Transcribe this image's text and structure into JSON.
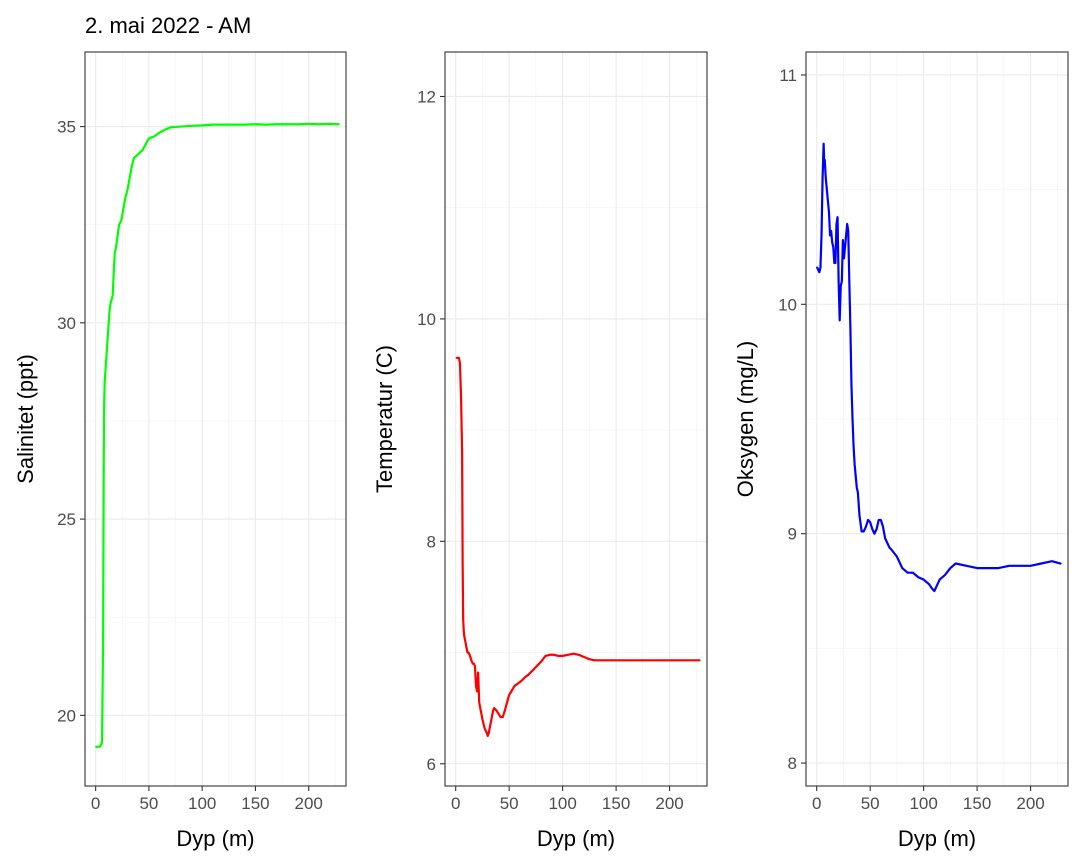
{
  "title": "2. mai 2022 - AM",
  "colors": {
    "salinity": "#00ff00",
    "temperature": "#ff0000",
    "oxygen": "#0000ff"
  },
  "chart_data": [
    {
      "type": "line",
      "id": "salinity",
      "xlabel": "Dyp (m)",
      "ylabel": "Salinitet (ppt)",
      "xlim": [
        -10,
        235
      ],
      "ylim": [
        18.2,
        36.9
      ],
      "x_ticks": [
        0,
        50,
        100,
        150,
        200
      ],
      "y_ticks": [
        20,
        25,
        30,
        35
      ],
      "grid": true,
      "series": [
        {
          "color": "#00ff00",
          "x": [
            0.5,
            2,
            4,
            6,
            7,
            7.5,
            8,
            8.5,
            9,
            10,
            11,
            12,
            13,
            14,
            15,
            16,
            17,
            18,
            19,
            20,
            21,
            22,
            24,
            26,
            28,
            30,
            32,
            34,
            36,
            38,
            40,
            42,
            44,
            46,
            48,
            50,
            55,
            60,
            65,
            70,
            80,
            90,
            100,
            110,
            120,
            130,
            140,
            150,
            160,
            170,
            180,
            190,
            200,
            210,
            220,
            228
          ],
          "y": [
            19.2,
            19.2,
            19.2,
            19.3,
            22.0,
            26.0,
            28.0,
            28.5,
            28.7,
            29.1,
            29.5,
            29.9,
            30.3,
            30.5,
            30.6,
            30.7,
            31.3,
            31.8,
            31.9,
            32.1,
            32.3,
            32.5,
            32.6,
            32.9,
            33.2,
            33.4,
            33.7,
            34.0,
            34.2,
            34.25,
            34.3,
            34.35,
            34.4,
            34.5,
            34.6,
            34.7,
            34.75,
            34.85,
            34.92,
            34.98,
            35.0,
            35.02,
            35.03,
            35.05,
            35.05,
            35.05,
            35.05,
            35.06,
            35.05,
            35.06,
            35.06,
            35.06,
            35.07,
            35.06,
            35.07,
            35.06
          ]
        }
      ]
    },
    {
      "type": "line",
      "id": "temperature",
      "xlabel": "Dyp (m)",
      "ylabel": "Temperatur (C)",
      "xlim": [
        -10,
        235
      ],
      "ylim": [
        5.8,
        12.4
      ],
      "x_ticks": [
        0,
        50,
        100,
        150,
        200
      ],
      "y_ticks": [
        6,
        8,
        10,
        12
      ],
      "grid": true,
      "series": [
        {
          "color": "#ff0000",
          "x": [
            1,
            3,
            4,
            5,
            6,
            6.5,
            7,
            7.5,
            8,
            9,
            10,
            11,
            12,
            13,
            14,
            15,
            16,
            17,
            18,
            19,
            20,
            21,
            22,
            23,
            24,
            25,
            27,
            29,
            30,
            31,
            33,
            35,
            36,
            38,
            40,
            42,
            44,
            46,
            48,
            50,
            52,
            55,
            58,
            62,
            65,
            68,
            72,
            76,
            80,
            84,
            88,
            92,
            96,
            100,
            105,
            110,
            115,
            120,
            125,
            130,
            140,
            150,
            160,
            170,
            180,
            190,
            200,
            210,
            220,
            228
          ],
          "y": [
            9.65,
            9.65,
            9.6,
            9.3,
            8.8,
            7.8,
            7.3,
            7.2,
            7.15,
            7.1,
            7.05,
            7.0,
            7.0,
            6.98,
            6.95,
            6.92,
            6.9,
            6.9,
            6.88,
            6.7,
            6.65,
            6.82,
            6.55,
            6.5,
            6.45,
            6.4,
            6.32,
            6.28,
            6.25,
            6.28,
            6.38,
            6.48,
            6.5,
            6.48,
            6.45,
            6.42,
            6.42,
            6.48,
            6.55,
            6.62,
            6.65,
            6.7,
            6.72,
            6.75,
            6.78,
            6.8,
            6.84,
            6.88,
            6.92,
            6.97,
            6.98,
            6.98,
            6.97,
            6.97,
            6.98,
            6.99,
            6.98,
            6.96,
            6.94,
            6.93,
            6.93,
            6.93,
            6.93,
            6.93,
            6.93,
            6.93,
            6.93,
            6.93,
            6.93,
            6.93
          ]
        }
      ]
    },
    {
      "type": "line",
      "id": "oxygen",
      "xlabel": "Dyp (m)",
      "ylabel": "Oksygen (mg/L)",
      "xlim": [
        -10,
        235
      ],
      "ylim": [
        7.9,
        11.1
      ],
      "x_ticks": [
        0,
        50,
        100,
        150,
        200
      ],
      "y_ticks": [
        8,
        9,
        10,
        11
      ],
      "grid": true,
      "series": [
        {
          "color": "#0000ff",
          "x": [
            0.5,
            1.5,
            2.5,
            3.5,
            4.5,
            5.5,
            6.5,
            7,
            7.5,
            8.5,
            9.5,
            10.5,
            11.5,
            12.5,
            13.5,
            14.5,
            15.5,
            16.5,
            17.5,
            18.5,
            19.5,
            20.5,
            21.5,
            22.5,
            23.5,
            24.5,
            25.5,
            26.5,
            27.5,
            28.5,
            29.5,
            30.5,
            31.5,
            32.5,
            33.5,
            34.5,
            35.5,
            36.5,
            37.5,
            38.5,
            40,
            42,
            44,
            46,
            48,
            50,
            52,
            54,
            56,
            58,
            60,
            62,
            64,
            66,
            68,
            70,
            75,
            80,
            85,
            90,
            95,
            100,
            105,
            108,
            110,
            112,
            115,
            120,
            125,
            130,
            140,
            150,
            160,
            170,
            180,
            190,
            200,
            210,
            220,
            228
          ],
          "y": [
            10.16,
            10.15,
            10.14,
            10.16,
            10.3,
            10.55,
            10.7,
            10.62,
            10.63,
            10.55,
            10.5,
            10.45,
            10.4,
            10.3,
            10.32,
            10.27,
            10.25,
            10.18,
            10.18,
            10.35,
            10.38,
            10.1,
            9.93,
            10.08,
            10.1,
            10.28,
            10.2,
            10.25,
            10.3,
            10.35,
            10.32,
            10.1,
            9.9,
            9.65,
            9.5,
            9.38,
            9.3,
            9.25,
            9.2,
            9.18,
            9.08,
            9.01,
            9.01,
            9.03,
            9.06,
            9.05,
            9.02,
            9.0,
            9.02,
            9.06,
            9.06,
            9.03,
            8.98,
            8.96,
            8.94,
            8.93,
            8.9,
            8.85,
            8.83,
            8.83,
            8.81,
            8.8,
            8.78,
            8.76,
            8.75,
            8.77,
            8.8,
            8.82,
            8.85,
            8.87,
            8.86,
            8.85,
            8.85,
            8.85,
            8.86,
            8.86,
            8.86,
            8.87,
            8.88,
            8.87
          ]
        }
      ]
    }
  ]
}
